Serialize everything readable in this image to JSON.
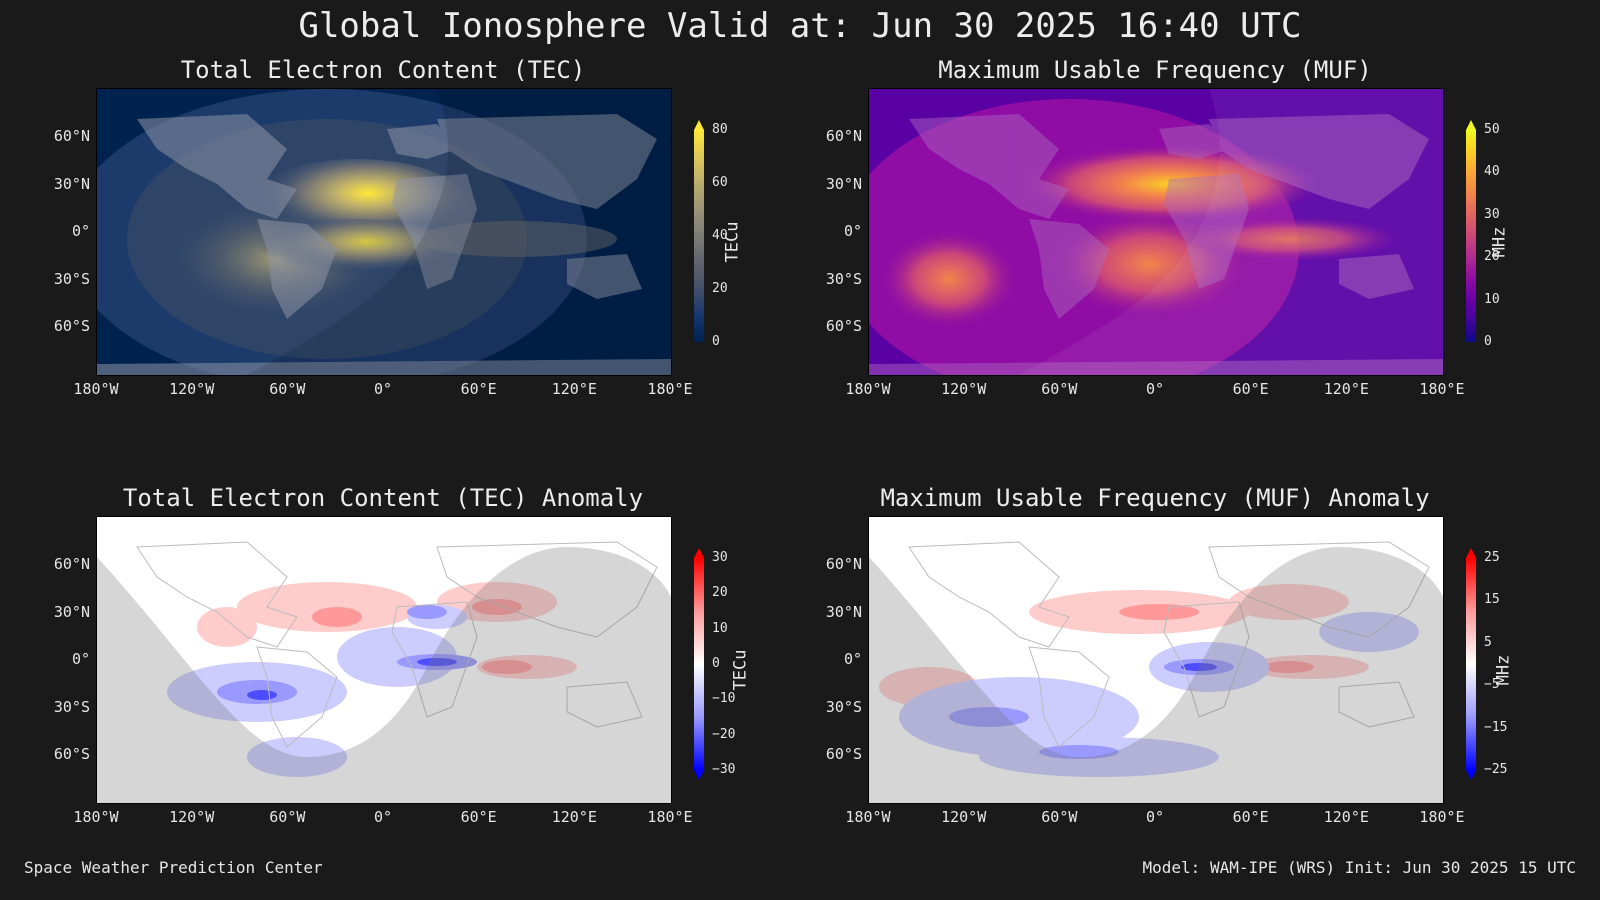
{
  "title": "Global Ionosphere Valid at: Jun 30 2025 16:40 UTC",
  "footer": {
    "left": "Space Weather Prediction Center",
    "right": "Model: WAM-IPE (WRS) Init: Jun 30 2025 15 UTC"
  },
  "axes": {
    "lon_labels": [
      "180°W",
      "120°W",
      "60°W",
      "0°",
      "60°E",
      "120°E",
      "180°E"
    ],
    "lat_labels": [
      "60°N",
      "30°N",
      "0°",
      "30°S",
      "60°S"
    ]
  },
  "panels": [
    {
      "id": "tec",
      "title": "Total Electron Content (TEC)",
      "colorbar_label": "TECu",
      "colorbar_ticks": [
        "80",
        "60",
        "40",
        "20",
        "0"
      ],
      "colormap": "cividis",
      "colors": [
        "#00224e",
        "#123570",
        "#3b496c",
        "#575d6d",
        "#707173",
        "#8a8779",
        "#a59c74",
        "#c3b369",
        "#e1cc55",
        "#fee838"
      ]
    },
    {
      "id": "muf",
      "title": "Maximum Usable Frequency (MUF)",
      "colorbar_label": "MHz",
      "colorbar_ticks": [
        "50",
        "40",
        "30",
        "20",
        "10",
        "0"
      ],
      "colormap": "plasma",
      "colors": [
        "#0d0887",
        "#41049d",
        "#6a00a8",
        "#8f0da4",
        "#b12a90",
        "#cc4778",
        "#e16462",
        "#f2844b",
        "#fca636",
        "#fcce25",
        "#f0f921"
      ]
    },
    {
      "id": "tec-anomaly",
      "title": "Total Electron Content (TEC) Anomaly",
      "colorbar_label": "TECu",
      "colorbar_ticks": [
        "30",
        "20",
        "10",
        "0",
        "−10",
        "−20",
        "−30"
      ],
      "colormap": "bwr",
      "colors": [
        "#0000ff",
        "#4d4dff",
        "#9999ff",
        "#ccccff",
        "#ffffff",
        "#ffcccc",
        "#ff9999",
        "#ff4d4d",
        "#ff0000"
      ]
    },
    {
      "id": "muf-anomaly",
      "title": "Maximum Usable Frequency (MUF) Anomaly",
      "colorbar_label": "MHz",
      "colorbar_ticks": [
        "25",
        "15",
        "5",
        "−5",
        "−15",
        "−25"
      ],
      "colormap": "bwr",
      "colors": [
        "#0000ff",
        "#4d4dff",
        "#9999ff",
        "#ccccff",
        "#ffffff",
        "#ffcccc",
        "#ff9999",
        "#ff4d4d",
        "#ff0000"
      ]
    }
  ]
}
